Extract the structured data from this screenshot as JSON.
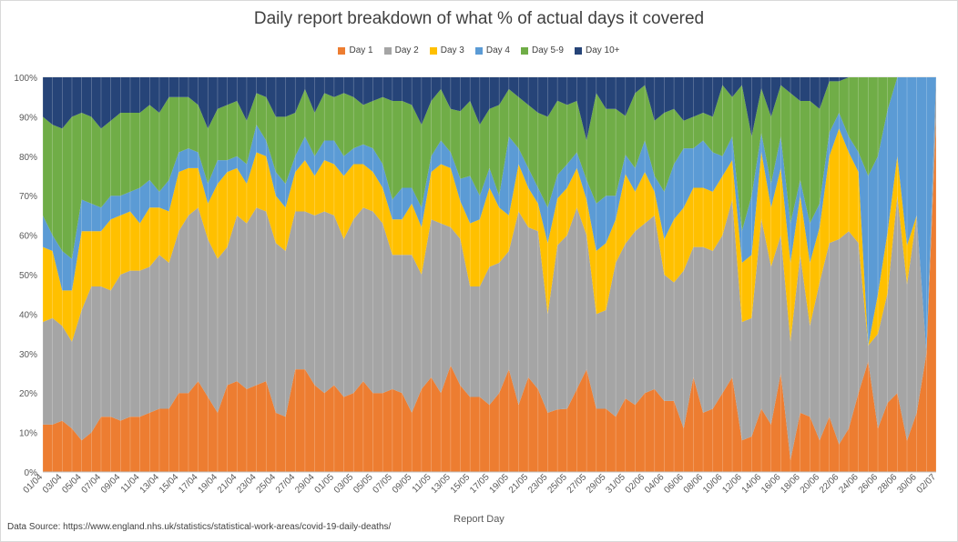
{
  "chart_data": {
    "type": "area",
    "title": "Daily report breakdown of what % of actual days it covered",
    "xlabel": "Report Day",
    "ylabel": "",
    "ylim": [
      0,
      100
    ],
    "y_ticks": [
      "0%",
      "10%",
      "20%",
      "30%",
      "40%",
      "50%",
      "60%",
      "70%",
      "80%",
      "90%",
      "100%"
    ],
    "stacked": "100%",
    "grid": true,
    "legend_position": "top",
    "x_tick_labels": [
      "01/04",
      "03/04",
      "05/04",
      "07/04",
      "09/04",
      "11/04",
      "13/04",
      "15/04",
      "17/04",
      "19/04",
      "21/04",
      "23/04",
      "25/04",
      "27/04",
      "29/04",
      "01/05",
      "03/05",
      "05/05",
      "07/05",
      "09/05",
      "11/05",
      "13/05",
      "15/05",
      "17/05",
      "19/05",
      "21/05",
      "23/05",
      "25/05",
      "27/05",
      "29/05",
      "31/05",
      "02/06",
      "04/06",
      "06/06",
      "08/06",
      "10/06",
      "12/06",
      "14/06",
      "16/06",
      "18/06",
      "20/06",
      "22/06",
      "24/06",
      "26/06",
      "28/06",
      "30/06",
      "02/07"
    ],
    "series": [
      {
        "name": "Day 1",
        "color": "#ED7D31",
        "values": [
          12,
          12,
          13,
          11,
          8,
          10,
          14,
          14,
          13,
          14,
          14,
          15,
          16,
          16,
          20,
          20,
          23,
          19,
          15,
          22,
          23,
          21,
          22,
          23,
          15,
          14,
          26,
          26,
          22,
          20,
          22,
          19,
          20,
          23,
          20,
          20,
          21,
          20,
          15,
          21,
          24,
          20,
          27,
          23,
          19,
          19,
          17,
          20,
          26,
          17,
          24,
          21,
          15,
          16,
          16,
          21,
          26,
          16,
          16,
          14,
          19,
          17,
          20,
          21,
          18,
          18,
          11,
          24,
          15,
          16,
          20,
          24,
          8,
          9,
          17,
          12,
          25,
          3,
          15,
          14,
          8,
          14,
          7,
          11,
          20,
          28,
          11,
          17,
          20,
          8,
          15,
          30,
          90
        ]
      },
      {
        "name": "Day 2",
        "color": "#A5A5A5",
        "values": [
          26,
          27,
          24,
          22,
          33,
          37,
          33,
          32,
          37,
          37,
          37,
          37,
          39,
          37,
          41,
          45,
          44,
          40,
          39,
          35,
          42,
          42,
          45,
          43,
          43,
          42,
          40,
          40,
          43,
          46,
          43,
          40,
          44,
          44,
          46,
          43,
          34,
          35,
          40,
          29,
          40,
          43,
          35,
          39,
          28,
          28,
          35,
          33,
          30,
          49,
          38,
          40,
          25,
          42,
          44,
          46,
          34,
          24,
          25,
          39,
          40,
          44,
          43,
          44,
          32,
          30,
          40,
          33,
          42,
          40,
          40,
          45,
          30,
          30,
          51,
          40,
          35,
          30,
          40,
          23,
          40,
          44,
          52,
          50,
          38,
          4,
          24,
          27,
          50,
          40,
          50,
          0,
          10
        ]
      },
      {
        "name": "Day 3",
        "color": "#FFC000",
        "values": [
          19,
          17,
          9,
          13,
          20,
          14,
          14,
          18,
          15,
          15,
          12,
          15,
          12,
          13,
          15,
          12,
          10,
          9,
          19,
          19,
          12,
          10,
          14,
          14,
          12,
          11,
          10,
          13,
          10,
          13,
          13,
          16,
          14,
          11,
          10,
          9,
          9,
          9,
          13,
          12,
          12,
          15,
          15,
          10,
          16,
          17,
          20,
          14,
          9,
          12,
          10,
          7,
          18,
          12,
          12,
          10,
          9,
          16,
          17,
          11,
          18,
          10,
          13,
          6,
          9,
          16,
          16,
          15,
          15,
          15,
          15,
          10,
          15,
          16,
          18,
          15,
          17,
          20,
          15,
          16,
          14,
          22,
          28,
          20,
          18,
          0,
          10,
          15,
          10,
          10,
          0,
          0,
          0
        ]
      },
      {
        "name": "Day 4",
        "color": "#5B9BD5",
        "values": [
          8,
          4,
          10,
          8,
          8,
          7,
          6,
          6,
          5,
          5,
          9,
          7,
          4,
          8,
          5,
          5,
          4,
          5,
          6,
          3,
          3,
          5,
          7,
          4,
          6,
          6,
          4,
          6,
          5,
          5,
          6,
          5,
          4,
          5,
          6,
          6,
          5,
          8,
          4,
          5,
          4,
          6,
          4,
          6,
          12,
          6,
          5,
          3,
          20,
          4,
          5,
          4,
          9,
          6,
          6,
          4,
          5,
          12,
          12,
          6,
          5,
          6,
          8,
          4,
          12,
          14,
          15,
          10,
          12,
          10,
          5,
          6,
          8,
          15,
          5,
          6,
          8,
          10,
          4,
          10,
          6,
          6,
          4,
          4,
          5,
          43,
          35,
          30,
          20,
          43,
          35,
          70,
          0
        ]
      },
      {
        "name": "Day 5-9",
        "color": "#70AD47",
        "values": [
          25,
          28,
          31,
          36,
          22,
          22,
          20,
          19,
          21,
          20,
          19,
          19,
          20,
          21,
          14,
          13,
          12,
          14,
          13,
          14,
          14,
          11,
          8,
          11,
          14,
          17,
          11,
          12,
          11,
          12,
          11,
          16,
          13,
          10,
          12,
          17,
          25,
          22,
          21,
          21,
          14,
          13,
          11,
          18,
          19,
          18,
          15,
          23,
          12,
          13,
          16,
          19,
          23,
          19,
          15,
          13,
          10,
          28,
          22,
          22,
          10,
          19,
          14,
          14,
          20,
          14,
          7,
          8,
          7,
          9,
          18,
          10,
          37,
          15,
          12,
          17,
          13,
          33,
          20,
          31,
          24,
          13,
          8,
          15,
          19,
          25,
          20,
          8,
          0,
          0,
          0,
          0,
          0
        ]
      },
      {
        "name": "Day 10+",
        "color": "#264478",
        "values": [
          10,
          12,
          13,
          10,
          9,
          10,
          13,
          11,
          9,
          9,
          9,
          7,
          9,
          5,
          5,
          5,
          7,
          13,
          8,
          7,
          6,
          11,
          4,
          5,
          10,
          10,
          9,
          3,
          9,
          4,
          5,
          4,
          5,
          7,
          6,
          5,
          6,
          6,
          7,
          12,
          6,
          3,
          8,
          9,
          6,
          12,
          8,
          7,
          3,
          5,
          7,
          9,
          10,
          6,
          7,
          6,
          16,
          4,
          8,
          8,
          10,
          4,
          2,
          11,
          9,
          8,
          11,
          10,
          9,
          10,
          2,
          5,
          2,
          15,
          3,
          10,
          2,
          4,
          6,
          6,
          8,
          1,
          1,
          0,
          0,
          0,
          0,
          0,
          0,
          0,
          0,
          0,
          0
        ]
      }
    ]
  },
  "data_source": "Data Source: https://www.england.nhs.uk/statistics/statistical-work-areas/covid-19-daily-deaths/"
}
